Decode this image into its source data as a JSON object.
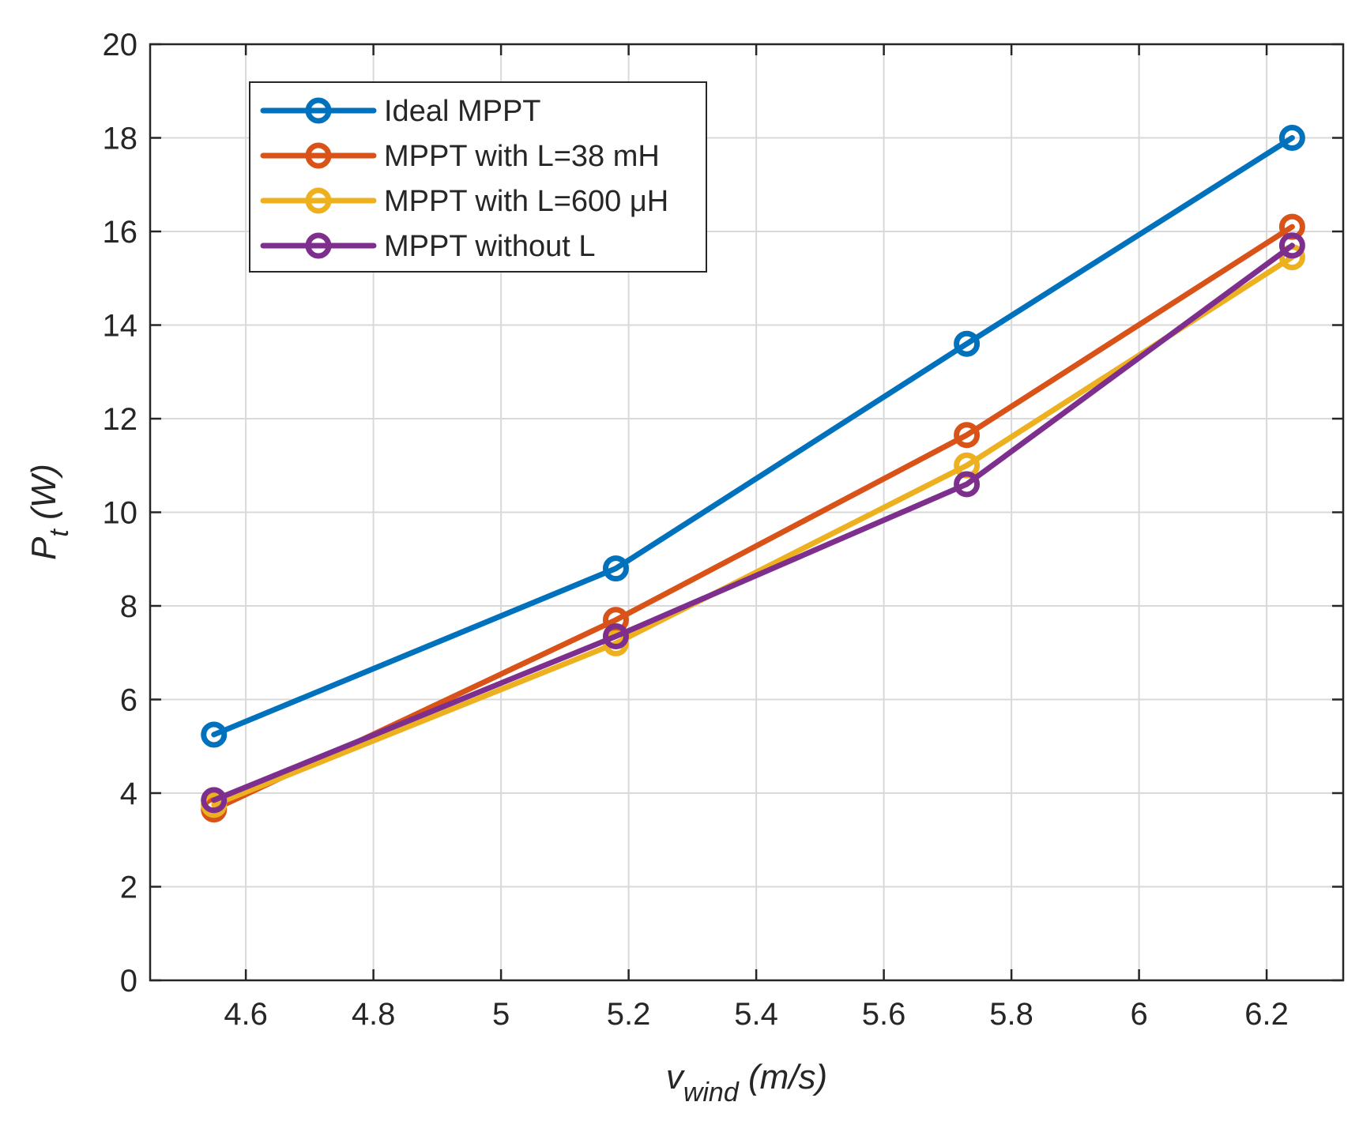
{
  "chart_data": {
    "type": "line",
    "title": "",
    "xlabel": {
      "main": "v",
      "subscript": "wind",
      "unit": " (m/s)"
    },
    "ylabel": {
      "main": "P",
      "subscript": "t",
      "unit": " (W)"
    },
    "xlim": [
      4.45,
      6.32
    ],
    "ylim": [
      0,
      20
    ],
    "xticks": [
      4.6,
      4.8,
      5,
      5.2,
      5.4,
      5.6,
      5.8,
      6,
      6.2
    ],
    "xtick_labels": [
      "4.6",
      "4.8",
      "5",
      "5.2",
      "5.4",
      "5.6",
      "5.8",
      "6",
      "6.2"
    ],
    "yticks": [
      0,
      2,
      4,
      6,
      8,
      10,
      12,
      14,
      16,
      18,
      20
    ],
    "ytick_labels": [
      "0",
      "2",
      "4",
      "6",
      "8",
      "10",
      "12",
      "14",
      "16",
      "18",
      "20"
    ],
    "grid": true,
    "legend_position": "top-left",
    "x": [
      4.55,
      5.18,
      5.73,
      6.24
    ],
    "series": [
      {
        "name": "Ideal MPPT",
        "legend_label": "Ideal MPPT",
        "color": "#0072BD",
        "values": [
          5.25,
          8.8,
          13.6,
          18.0
        ]
      },
      {
        "name": "MPPT with L=38 mH",
        "legend_label": "MPPT with L=38 mH",
        "color": "#D95319",
        "values": [
          3.65,
          7.7,
          11.65,
          16.1
        ]
      },
      {
        "name": "MPPT with L=600 μH",
        "legend_label": "MPPT with L=600 μH",
        "color": "#EDB120",
        "values": [
          3.75,
          7.2,
          11.0,
          15.45
        ]
      },
      {
        "name": "MPPT without L",
        "legend_label": "MPPT without L",
        "color": "#7E2F8E",
        "values": [
          3.85,
          7.35,
          10.6,
          15.7
        ]
      }
    ]
  }
}
